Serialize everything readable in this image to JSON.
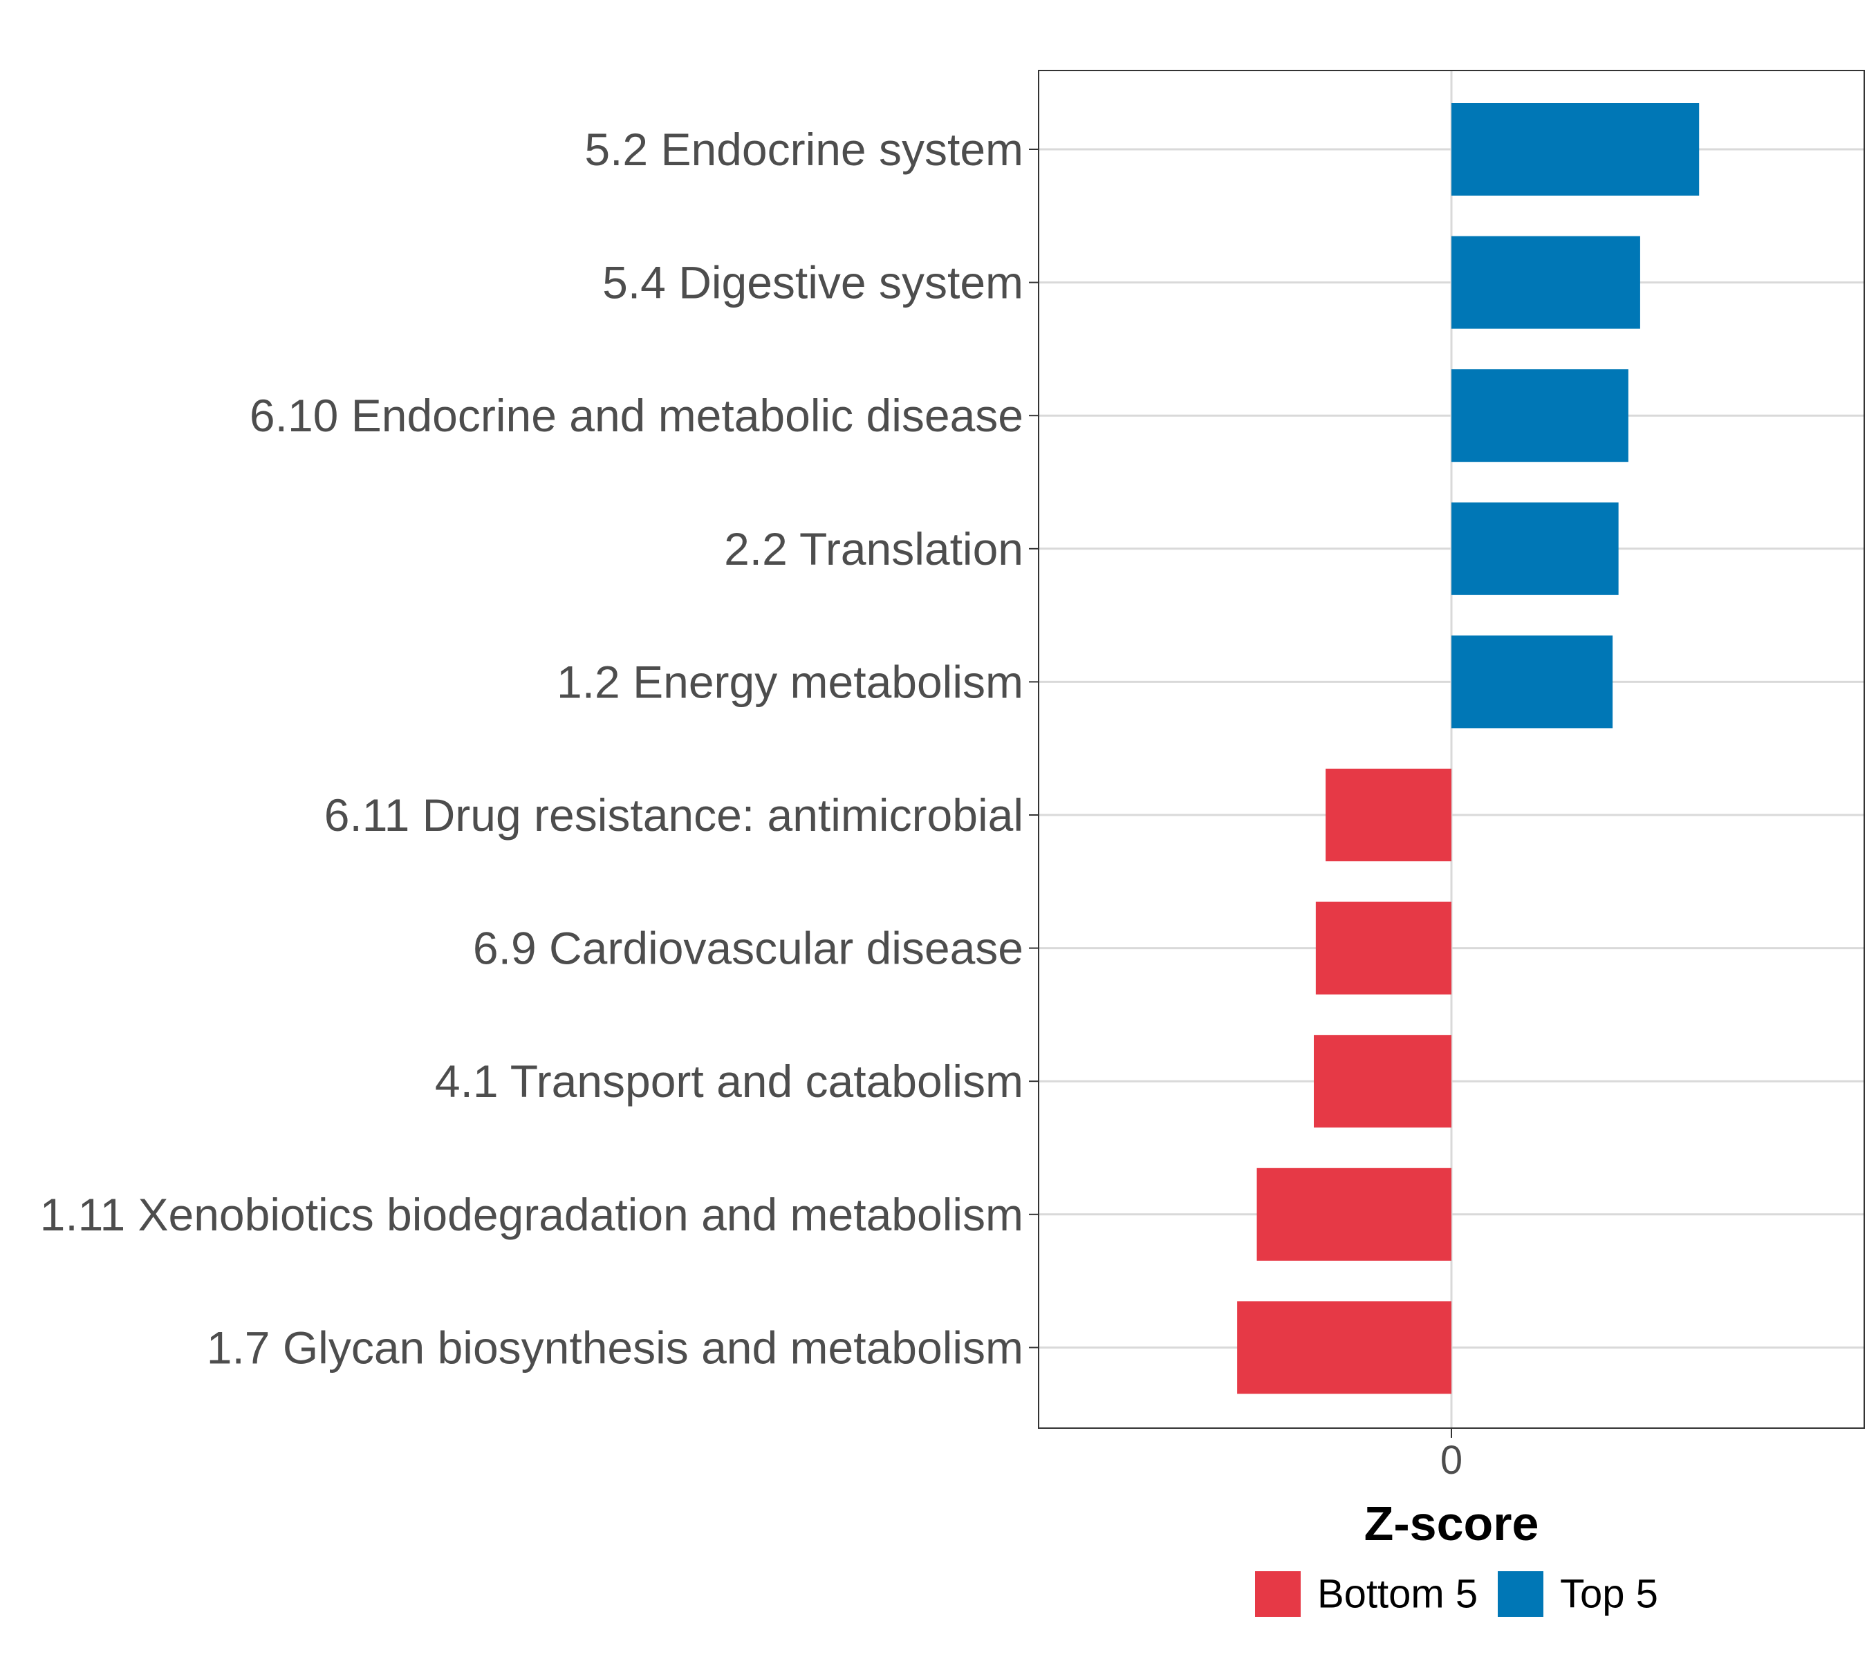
{
  "chart_data": {
    "type": "bar",
    "orientation": "horizontal",
    "title": "",
    "xlabel": "Z-score",
    "ylabel": "",
    "xlim": [
      -2.1,
      2.1
    ],
    "x_ticks": [
      0
    ],
    "x_tick_labels": [
      "0"
    ],
    "grid": true,
    "legend_position": "bottom",
    "categories": [
      "5.2 Endocrine system",
      "5.4 Digestive system",
      "6.10 Endocrine and metabolic disease",
      "2.2 Translation",
      "1.2 Energy metabolism",
      "6.11 Drug resistance: antimicrobial",
      "6.9 Cardiovascular disease",
      "4.1 Transport and catabolism",
      "1.11 Xenobiotics biodegradation and metabolism",
      "1.7 Glycan biosynthesis and metabolism"
    ],
    "values": [
      1.26,
      0.96,
      0.9,
      0.85,
      0.82,
      -0.64,
      -0.69,
      -0.7,
      -0.99,
      -1.09
    ],
    "groups": [
      "Top 5",
      "Top 5",
      "Top 5",
      "Top 5",
      "Top 5",
      "Bottom 5",
      "Bottom 5",
      "Bottom 5",
      "Bottom 5",
      "Bottom 5"
    ],
    "legend": [
      {
        "name": "Bottom 5",
        "color": "#e63946"
      },
      {
        "name": "Top 5",
        "color": "#0077b6"
      }
    ]
  }
}
